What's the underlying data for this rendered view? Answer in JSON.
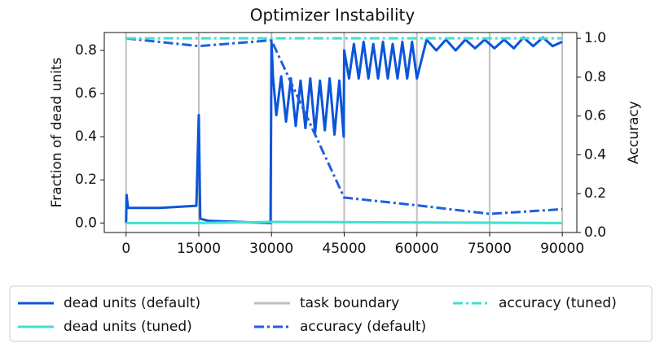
{
  "chart_data": {
    "type": "line",
    "title": "Optimizer Instability",
    "ylabel": "Fraction of dead units",
    "y2label": "Accuracy",
    "xlim": [
      -4500,
      93000
    ],
    "xticks": [
      0,
      15000,
      30000,
      45000,
      60000,
      75000,
      90000
    ],
    "ylim": [
      -0.044,
      0.883
    ],
    "yticks": [
      {
        "value": 0,
        "label": "0.0"
      },
      0.2,
      0.4,
      0.6,
      0.8
    ],
    "y2lim": [
      0,
      1.03
    ],
    "y2ticks": [
      {
        "value": 0,
        "label": "0.0"
      },
      0.2,
      0.4,
      0.6,
      0.8,
      {
        "value": 1,
        "label": "1.0"
      }
    ],
    "xgrid": {
      "name": "task boundary",
      "color": "#bfbfbf"
    },
    "series": [
      {
        "name": "dead units (default)",
        "color": "#0b55d9",
        "style": "solid",
        "x": [
          0,
          100,
          400,
          7000,
          14500,
          15000,
          15300,
          17000,
          29800,
          30000,
          30300,
          31000,
          32000,
          33000,
          34000,
          35000,
          36000,
          37000,
          38000,
          39000,
          40000,
          41000,
          42000,
          43000,
          44000,
          44900,
          45000,
          46000,
          47000,
          48000,
          49000,
          50000,
          51000,
          52000,
          53000,
          54000,
          55000,
          56000,
          57000,
          58000,
          59000,
          60000,
          62000,
          64000,
          66000,
          68000,
          70000,
          72000,
          74000,
          76000,
          78000,
          80000,
          82000,
          84000,
          86000,
          88000,
          90000
        ],
        "values": [
          0.0,
          0.13,
          0.07,
          0.07,
          0.08,
          0.5,
          0.02,
          0.01,
          0.0,
          0.84,
          0.68,
          0.5,
          0.68,
          0.47,
          0.67,
          0.45,
          0.66,
          0.44,
          0.67,
          0.42,
          0.66,
          0.43,
          0.67,
          0.41,
          0.66,
          0.4,
          0.8,
          0.67,
          0.83,
          0.67,
          0.84,
          0.67,
          0.83,
          0.67,
          0.84,
          0.67,
          0.83,
          0.67,
          0.84,
          0.67,
          0.84,
          0.67,
          0.85,
          0.8,
          0.85,
          0.8,
          0.85,
          0.81,
          0.85,
          0.81,
          0.85,
          0.81,
          0.86,
          0.82,
          0.86,
          0.82,
          0.84
        ]
      },
      {
        "name": "dead units (tuned)",
        "color": "#40e0d0",
        "style": "solid",
        "x": [
          0,
          15000,
          30000,
          90000
        ],
        "values": [
          0.0,
          0.0,
          0.005,
          0.0
        ]
      },
      {
        "name": "accuracy (default)",
        "color": "#1f5fe0",
        "style": "dashdot",
        "axis": "y2",
        "x": [
          0,
          15000,
          30000,
          45000,
          60000,
          75000,
          90000
        ],
        "values": [
          1.0,
          0.96,
          0.99,
          0.18,
          0.14,
          0.096,
          0.12
        ]
      },
      {
        "name": "accuracy (tuned)",
        "color": "#40e0d0",
        "style": "dashdot",
        "axis": "y2",
        "x": [
          0,
          15000,
          30000,
          45000,
          60000,
          75000,
          90000
        ],
        "values": [
          1.0,
          1.0,
          1.0,
          1.0,
          1.0,
          1.0,
          1.0
        ]
      }
    ]
  }
}
